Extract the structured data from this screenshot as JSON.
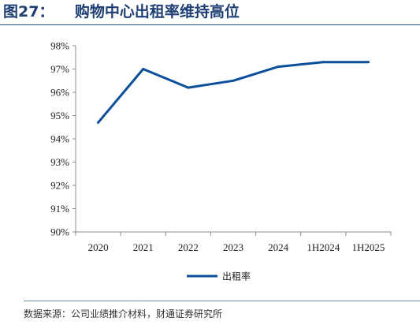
{
  "header": {
    "title": "图27：    购物中心出租率维持高位"
  },
  "footer": {
    "source": "数据来源：公司业绩推介材料，财通证券研究所"
  },
  "chart_data": {
    "type": "line",
    "categories": [
      "2020",
      "2021",
      "2022",
      "2023",
      "2024",
      "1H2024",
      "1H2025"
    ],
    "series": [
      {
        "name": "出租率",
        "values": [
          94.7,
          97.0,
          96.2,
          96.5,
          97.1,
          97.3,
          97.3
        ],
        "color": "#0b4f9c"
      }
    ],
    "yticks": [
      "90%",
      "91%",
      "92%",
      "93%",
      "94%",
      "95%",
      "96%",
      "97%",
      "98%"
    ],
    "ylim": [
      90,
      98
    ],
    "grid": false,
    "legend_position": "bottom-center"
  }
}
